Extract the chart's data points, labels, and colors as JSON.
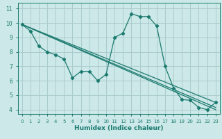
{
  "title": "",
  "xlabel": "Humidex (Indice chaleur)",
  "bg_color": "#cce8e8",
  "grid_color": "#aacccc",
  "line_color": "#1a7a6e",
  "xlim": [
    -0.5,
    23.5
  ],
  "ylim": [
    3.7,
    11.4
  ],
  "xticks": [
    0,
    1,
    2,
    3,
    4,
    5,
    6,
    7,
    8,
    9,
    10,
    11,
    12,
    13,
    14,
    15,
    16,
    17,
    18,
    19,
    20,
    21,
    22,
    23
  ],
  "yticks": [
    4,
    5,
    6,
    7,
    8,
    9,
    10,
    11
  ],
  "line1_x": [
    0,
    1,
    2,
    3,
    4,
    5,
    6,
    7,
    8,
    9,
    10,
    11,
    12,
    13,
    14,
    15,
    16,
    17,
    18,
    19,
    20,
    21,
    22,
    23
  ],
  "line1_y": [
    9.9,
    9.45,
    8.4,
    8.0,
    7.8,
    7.5,
    6.2,
    6.65,
    6.65,
    6.0,
    6.45,
    9.0,
    9.3,
    10.65,
    10.45,
    10.45,
    9.8,
    7.0,
    5.5,
    4.7,
    4.65,
    4.15,
    4.0,
    4.5
  ],
  "line2_x": [
    0,
    23
  ],
  "line2_y": [
    9.9,
    4.5
  ],
  "line3_x": [
    0,
    23
  ],
  "line3_y": [
    9.9,
    4.15
  ],
  "line4_x": [
    0,
    23
  ],
  "line4_y": [
    9.9,
    4.0
  ]
}
